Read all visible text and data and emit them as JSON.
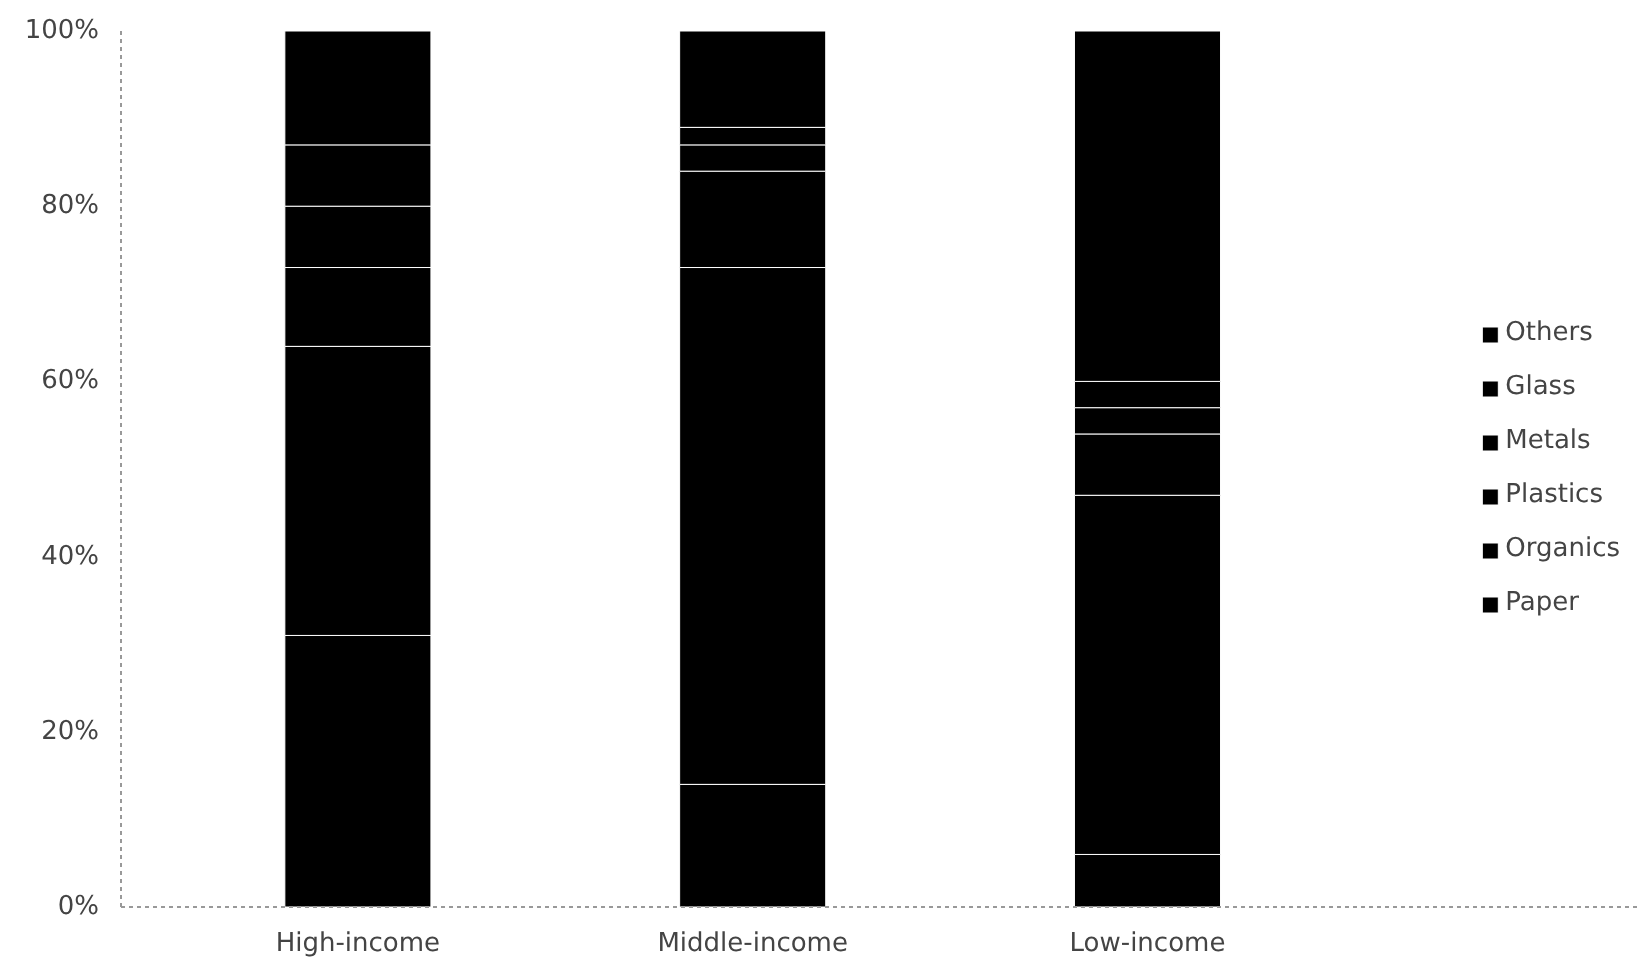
{
  "chart_data": {
    "type": "bar",
    "stacked": true,
    "categories": [
      "High-income",
      "Middle-income",
      "Low-income"
    ],
    "series": [
      {
        "name": "Paper",
        "color": "#000000",
        "values": [
          31,
          14,
          6
        ]
      },
      {
        "name": "Organics",
        "color": "#000000",
        "values": [
          33,
          59,
          41
        ]
      },
      {
        "name": "Plastics",
        "color": "#000000",
        "values": [
          9,
          11,
          7
        ]
      },
      {
        "name": "Metals",
        "color": "#000000",
        "values": [
          7,
          3,
          3
        ]
      },
      {
        "name": "Glass",
        "color": "#000000",
        "values": [
          7,
          2,
          3
        ]
      },
      {
        "name": "Others",
        "color": "#000000",
        "values": [
          13,
          11,
          40
        ]
      }
    ],
    "ylim": [
      0,
      100
    ],
    "yticks": [
      {
        "value": 0,
        "label": "0%"
      },
      {
        "value": 20,
        "label": "20%"
      },
      {
        "value": 40,
        "label": "40%"
      },
      {
        "value": 60,
        "label": "60%"
      },
      {
        "value": 80,
        "label": "80%"
      },
      {
        "value": 100,
        "label": "100%"
      }
    ],
    "grid": false,
    "legend": "right"
  }
}
